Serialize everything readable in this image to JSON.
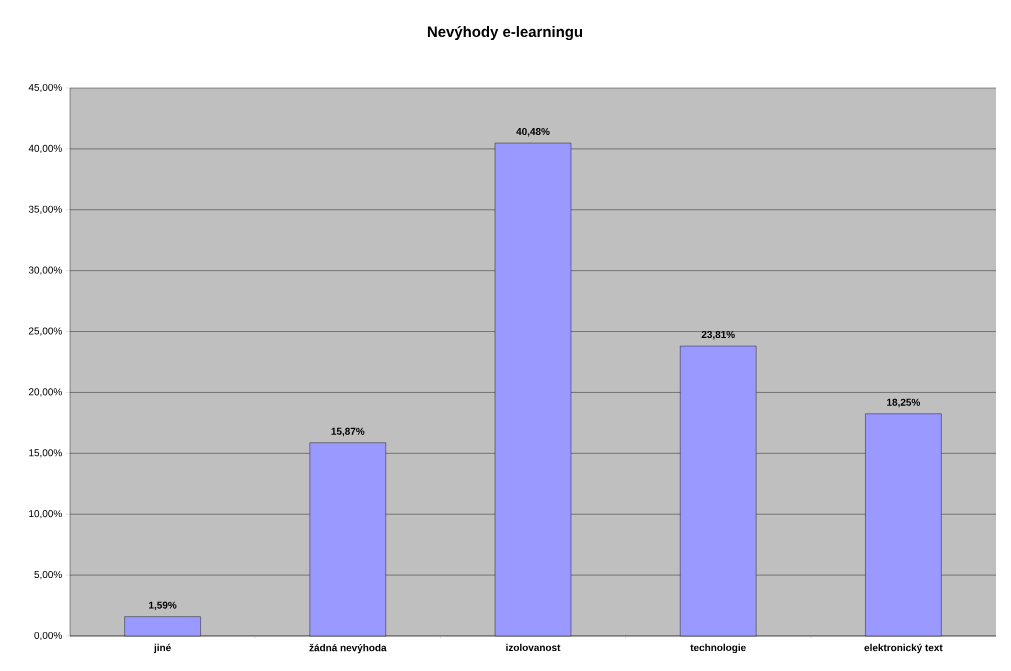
{
  "chart_data": {
    "type": "bar",
    "title": "Nevýhody e-learningu",
    "categories": [
      "jiné",
      "žádná nevýhoda",
      "izolovanost",
      "technologie",
      "elektronický text"
    ],
    "values": [
      1.59,
      15.87,
      40.48,
      23.81,
      18.25
    ],
    "value_labels": [
      "1,59%",
      "15,87%",
      "40,48%",
      "23,81%",
      "18,25%"
    ],
    "color": "#9999ff",
    "ylim": [
      0,
      45
    ],
    "yticks": [
      {
        "value": 0,
        "label": "0,00%"
      },
      {
        "value": 5,
        "label": "5,00%"
      },
      {
        "value": 10,
        "label": "10,00%"
      },
      {
        "value": 15,
        "label": "15,00%"
      },
      {
        "value": 20,
        "label": "20,00%"
      },
      {
        "value": 25,
        "label": "25,00%"
      },
      {
        "value": 30,
        "label": "30,00%"
      },
      {
        "value": 35,
        "label": "35,00%"
      },
      {
        "value": 40,
        "label": "40,00%"
      },
      {
        "value": 45,
        "label": "45,00%"
      }
    ],
    "grid": "y"
  }
}
